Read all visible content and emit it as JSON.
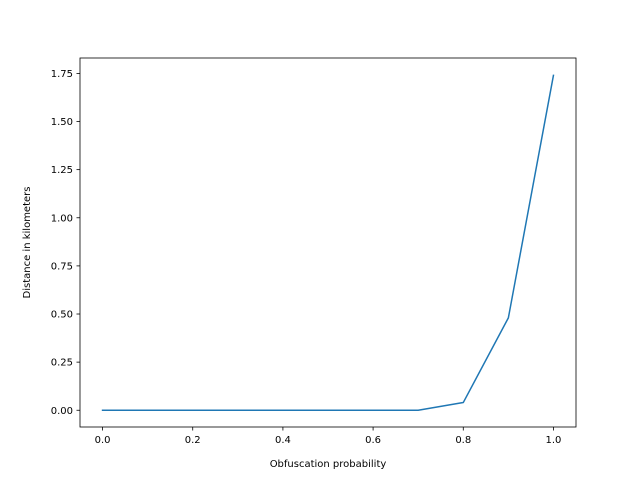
{
  "chart_data": {
    "type": "line",
    "title": "",
    "xlabel": "Obfuscation probability",
    "ylabel": "Distance in kilometers",
    "xlim": [
      -0.05,
      1.05
    ],
    "ylim": [
      -0.087,
      1.83
    ],
    "xticks": [
      0.0,
      0.2,
      0.4,
      0.6,
      0.8,
      1.0
    ],
    "xtick_labels": [
      "0.0",
      "0.2",
      "0.4",
      "0.6",
      "0.8",
      "1.0"
    ],
    "yticks": [
      0.0,
      0.25,
      0.5,
      0.75,
      1.0,
      1.25,
      1.5,
      1.75
    ],
    "ytick_labels": [
      "0.00",
      "0.25",
      "0.50",
      "0.75",
      "1.00",
      "1.25",
      "1.50",
      "1.75"
    ],
    "grid": false,
    "series": [
      {
        "color": "#1f77b4",
        "x": [
          0.0,
          0.1,
          0.2,
          0.3,
          0.4,
          0.5,
          0.6,
          0.7,
          0.8,
          0.9,
          1.0
        ],
        "y": [
          0.0,
          0.0,
          0.0,
          0.0,
          0.0,
          0.0,
          0.0,
          0.0,
          0.04,
          0.48,
          1.74
        ]
      }
    ]
  }
}
